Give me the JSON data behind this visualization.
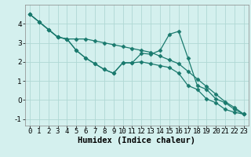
{
  "xlabel": "Humidex (Indice chaleur)",
  "background_color": "#d4f0ee",
  "line_color": "#1a7a6e",
  "grid_color": "#b0d8d4",
  "x_values": [
    0,
    1,
    2,
    3,
    4,
    5,
    6,
    7,
    8,
    9,
    10,
    11,
    12,
    13,
    14,
    15,
    16,
    17,
    18,
    19,
    20,
    21,
    22,
    23
  ],
  "line1": [
    4.5,
    4.1,
    3.7,
    3.3,
    3.2,
    2.6,
    2.2,
    1.9,
    1.6,
    1.4,
    1.95,
    1.95,
    2.45,
    2.4,
    2.6,
    3.45,
    3.6,
    2.2,
    0.75,
    0.55,
    0.05,
    -0.15,
    -0.5,
    -0.75
  ],
  "line2": [
    4.5,
    4.1,
    3.7,
    3.3,
    3.2,
    3.2,
    3.2,
    3.1,
    3.0,
    2.9,
    2.8,
    2.7,
    2.6,
    2.5,
    2.3,
    2.1,
    1.9,
    1.5,
    1.1,
    0.7,
    0.3,
    -0.1,
    -0.4,
    -0.75
  ],
  "line3": [
    4.5,
    4.1,
    3.7,
    3.3,
    3.2,
    2.6,
    2.2,
    1.9,
    1.6,
    1.4,
    1.95,
    1.95,
    2.0,
    1.9,
    1.8,
    1.7,
    1.4,
    0.75,
    0.55,
    0.05,
    -0.15,
    -0.5,
    -0.65,
    -0.75
  ],
  "xlim": [
    -0.5,
    23.5
  ],
  "ylim": [
    -1.35,
    5.0
  ],
  "xticks": [
    0,
    1,
    2,
    3,
    4,
    5,
    6,
    7,
    8,
    9,
    10,
    11,
    12,
    13,
    14,
    15,
    16,
    17,
    18,
    19,
    20,
    21,
    22,
    23
  ],
  "yticks": [
    -1,
    0,
    1,
    2,
    3,
    4
  ],
  "marker": "D",
  "markersize": 2.5,
  "linewidth": 0.9,
  "tick_fontsize": 6.5,
  "xlabel_fontsize": 7.5
}
